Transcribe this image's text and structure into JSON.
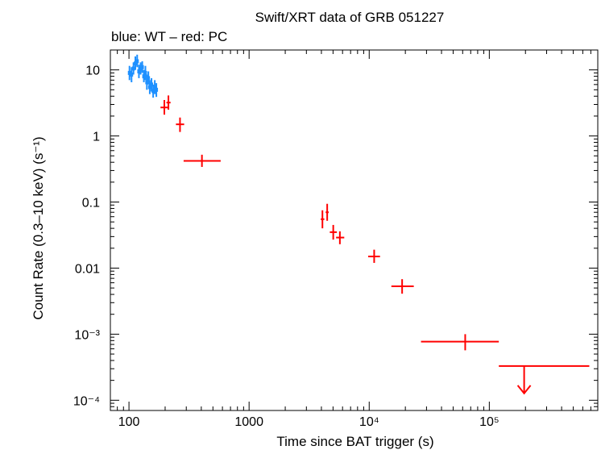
{
  "chart_data": {
    "type": "scatter",
    "title": "Swift/XRT data of GRB 051227",
    "subtitle": "blue: WT – red: PC",
    "xlabel": "Time since BAT trigger (s)",
    "ylabel": "Count Rate (0.3–10 keV) (s⁻¹)",
    "xscale": "log",
    "yscale": "log",
    "xlim": [
      70,
      800000
    ],
    "ylim": [
      7e-05,
      20
    ],
    "x_ticks": [
      {
        "value": 100,
        "label": "100"
      },
      {
        "value": 1000,
        "label": "1000"
      },
      {
        "value": 10000,
        "label": "10⁴"
      },
      {
        "value": 100000,
        "label": "10⁵"
      }
    ],
    "y_ticks": [
      {
        "value": 10,
        "label": "10"
      },
      {
        "value": 1,
        "label": "1"
      },
      {
        "value": 0.1,
        "label": "0.1"
      },
      {
        "value": 0.01,
        "label": "0.01"
      },
      {
        "value": 0.001,
        "label": "10⁻³"
      },
      {
        "value": 0.0001,
        "label": "10⁻⁴"
      }
    ],
    "series": [
      {
        "name": "WT",
        "color": "#1e90ff",
        "points": [
          {
            "x": 101,
            "y": 9.0,
            "ylo": 7.0,
            "yhi": 11.5
          },
          {
            "x": 105,
            "y": 8.5,
            "ylo": 6.5,
            "yhi": 11.0
          },
          {
            "x": 109,
            "y": 10.5,
            "ylo": 8.5,
            "yhi": 13.0
          },
          {
            "x": 113,
            "y": 12.5,
            "ylo": 10.0,
            "yhi": 16.0
          },
          {
            "x": 117,
            "y": 13.5,
            "ylo": 11.0,
            "yhi": 17.0
          },
          {
            "x": 121,
            "y": 9.5,
            "ylo": 7.5,
            "yhi": 12.0
          },
          {
            "x": 125,
            "y": 10.5,
            "ylo": 8.5,
            "yhi": 13.0
          },
          {
            "x": 129,
            "y": 11.0,
            "ylo": 9.0,
            "yhi": 13.5
          },
          {
            "x": 133,
            "y": 8.0,
            "ylo": 6.5,
            "yhi": 10.0
          },
          {
            "x": 137,
            "y": 9.0,
            "ylo": 7.0,
            "yhi": 11.5
          },
          {
            "x": 141,
            "y": 6.5,
            "ylo": 5.0,
            "yhi": 8.5
          },
          {
            "x": 145,
            "y": 7.5,
            "ylo": 6.0,
            "yhi": 9.5
          },
          {
            "x": 149,
            "y": 5.5,
            "ylo": 4.3,
            "yhi": 7.0
          },
          {
            "x": 154,
            "y": 6.0,
            "ylo": 4.7,
            "yhi": 7.5
          },
          {
            "x": 159,
            "y": 4.8,
            "ylo": 3.8,
            "yhi": 6.0
          },
          {
            "x": 164,
            "y": 5.5,
            "ylo": 4.3,
            "yhi": 7.0
          },
          {
            "x": 169,
            "y": 5.0,
            "ylo": 3.9,
            "yhi": 6.3
          }
        ]
      },
      {
        "name": "PC",
        "color": "#ff0000",
        "points": [
          {
            "x": 197,
            "y": 2.7,
            "xlo": 183,
            "xhi": 212,
            "ylo": 2.1,
            "yhi": 3.5
          },
          {
            "x": 213,
            "y": 3.2,
            "xlo": 205,
            "xhi": 222,
            "ylo": 2.5,
            "yhi": 4.1
          },
          {
            "x": 266,
            "y": 1.5,
            "xlo": 246,
            "xhi": 288,
            "ylo": 1.15,
            "yhi": 1.9
          },
          {
            "x": 405,
            "y": 0.42,
            "xlo": 285,
            "xhi": 580,
            "ylo": 0.34,
            "yhi": 0.52
          },
          {
            "x": 4080,
            "y": 0.055,
            "xlo": 3950,
            "xhi": 4230,
            "ylo": 0.04,
            "yhi": 0.075
          },
          {
            "x": 4470,
            "y": 0.07,
            "xlo": 4340,
            "xhi": 4600,
            "ylo": 0.052,
            "yhi": 0.094
          },
          {
            "x": 5020,
            "y": 0.035,
            "xlo": 4700,
            "xhi": 5380,
            "ylo": 0.027,
            "yhi": 0.045
          },
          {
            "x": 5700,
            "y": 0.029,
            "xlo": 5300,
            "xhi": 6200,
            "ylo": 0.023,
            "yhi": 0.036
          },
          {
            "x": 11000,
            "y": 0.015,
            "xlo": 9800,
            "xhi": 12300,
            "ylo": 0.012,
            "yhi": 0.019
          },
          {
            "x": 18800,
            "y": 0.0053,
            "xlo": 15300,
            "xhi": 23500,
            "ylo": 0.0041,
            "yhi": 0.0068
          },
          {
            "x": 63000,
            "y": 0.00077,
            "xlo": 27000,
            "xhi": 120000,
            "ylo": 0.00057,
            "yhi": 0.001
          }
        ]
      },
      {
        "name": "PC upper limit",
        "color": "#ff0000",
        "upper_limits": [
          {
            "x": 195000,
            "y": 0.00033,
            "xlo": 120000,
            "xhi": 680000
          }
        ]
      }
    ]
  }
}
